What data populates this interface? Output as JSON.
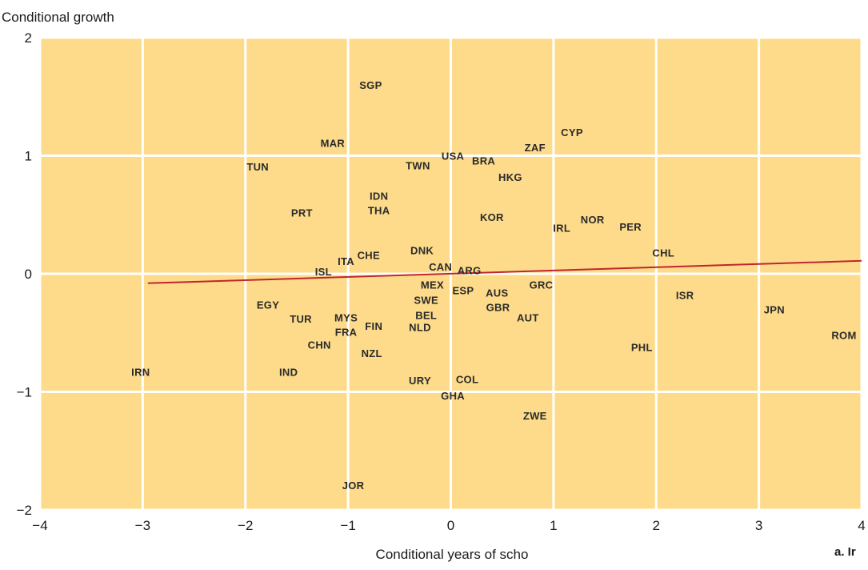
{
  "chart_data": {
    "type": "scatter",
    "ylabel": "Conditional growth",
    "xlabel": "Conditional years of scho",
    "corner_note": "a. Ir",
    "xlim": [
      -4,
      4
    ],
    "ylim": [
      -2,
      2
    ],
    "x_ticks": [
      -4,
      -3,
      -2,
      -1,
      0,
      1,
      2,
      3,
      4
    ],
    "y_ticks": [
      -2,
      -1,
      0,
      1,
      2
    ],
    "grid": true,
    "colors": {
      "plot_background": "#fddb8a",
      "grid": "#ffffff",
      "trend_line": "#c0262c",
      "text": "#2a2a2a"
    },
    "points": [
      {
        "label": "SGP",
        "x": -0.78,
        "y": 1.6
      },
      {
        "label": "CYP",
        "x": 1.18,
        "y": 1.2
      },
      {
        "label": "ZAF",
        "x": 0.82,
        "y": 1.07
      },
      {
        "label": "MAR",
        "x": -1.15,
        "y": 1.11
      },
      {
        "label": "USA",
        "x": 0.02,
        "y": 1.0
      },
      {
        "label": "BRA",
        "x": 0.32,
        "y": 0.96
      },
      {
        "label": "TWN",
        "x": -0.32,
        "y": 0.92
      },
      {
        "label": "TUN",
        "x": -1.88,
        "y": 0.91
      },
      {
        "label": "HKG",
        "x": 0.58,
        "y": 0.82
      },
      {
        "label": "IDN",
        "x": -0.7,
        "y": 0.66
      },
      {
        "label": "THA",
        "x": -0.7,
        "y": 0.54
      },
      {
        "label": "PRT",
        "x": -1.45,
        "y": 0.52
      },
      {
        "label": "KOR",
        "x": 0.4,
        "y": 0.48
      },
      {
        "label": "NOR",
        "x": 1.38,
        "y": 0.46
      },
      {
        "label": "PER",
        "x": 1.75,
        "y": 0.4
      },
      {
        "label": "IRL",
        "x": 1.08,
        "y": 0.39
      },
      {
        "label": "CHL",
        "x": 2.07,
        "y": 0.18
      },
      {
        "label": "DNK",
        "x": -0.28,
        "y": 0.2
      },
      {
        "label": "CHE",
        "x": -0.8,
        "y": 0.16
      },
      {
        "label": "ITA",
        "x": -1.02,
        "y": 0.11
      },
      {
        "label": "ISL",
        "x": -1.24,
        "y": 0.02
      },
      {
        "label": "CAN",
        "x": -0.1,
        "y": 0.06
      },
      {
        "label": "ARG",
        "x": 0.18,
        "y": 0.03
      },
      {
        "label": "MEX",
        "x": -0.18,
        "y": -0.09
      },
      {
        "label": "ESP",
        "x": 0.12,
        "y": -0.14
      },
      {
        "label": "AUS",
        "x": 0.45,
        "y": -0.16
      },
      {
        "label": "GRC",
        "x": 0.88,
        "y": -0.09
      },
      {
        "label": "ISR",
        "x": 2.28,
        "y": -0.18
      },
      {
        "label": "SWE",
        "x": -0.24,
        "y": -0.22
      },
      {
        "label": "EGY",
        "x": -1.78,
        "y": -0.26
      },
      {
        "label": "GBR",
        "x": 0.46,
        "y": -0.28
      },
      {
        "label": "JPN",
        "x": 3.15,
        "y": -0.3
      },
      {
        "label": "BEL",
        "x": -0.24,
        "y": -0.35
      },
      {
        "label": "TUR",
        "x": -1.46,
        "y": -0.38
      },
      {
        "label": "MYS",
        "x": -1.02,
        "y": -0.37
      },
      {
        "label": "AUT",
        "x": 0.75,
        "y": -0.37
      },
      {
        "label": "FIN",
        "x": -0.75,
        "y": -0.44
      },
      {
        "label": "NLD",
        "x": -0.3,
        "y": -0.45
      },
      {
        "label": "FRA",
        "x": -1.02,
        "y": -0.49
      },
      {
        "label": "ROM",
        "x": 3.95,
        "y": -0.52
      },
      {
        "label": "CHN",
        "x": -1.28,
        "y": -0.6
      },
      {
        "label": "PHL",
        "x": 1.86,
        "y": -0.62
      },
      {
        "label": "NZL",
        "x": -0.77,
        "y": -0.67
      },
      {
        "label": "IRN",
        "x": -3.02,
        "y": -0.83
      },
      {
        "label": "IND",
        "x": -1.58,
        "y": -0.83
      },
      {
        "label": "URY",
        "x": -0.3,
        "y": -0.9
      },
      {
        "label": "COL",
        "x": 0.16,
        "y": -0.89
      },
      {
        "label": "GHA",
        "x": 0.02,
        "y": -1.03
      },
      {
        "label": "ZWE",
        "x": 0.82,
        "y": -1.2
      },
      {
        "label": "JOR",
        "x": -0.95,
        "y": -1.79
      }
    ],
    "trend_line": {
      "x": [
        -2.95,
        4.0
      ],
      "y": [
        -0.08,
        0.11
      ]
    }
  }
}
